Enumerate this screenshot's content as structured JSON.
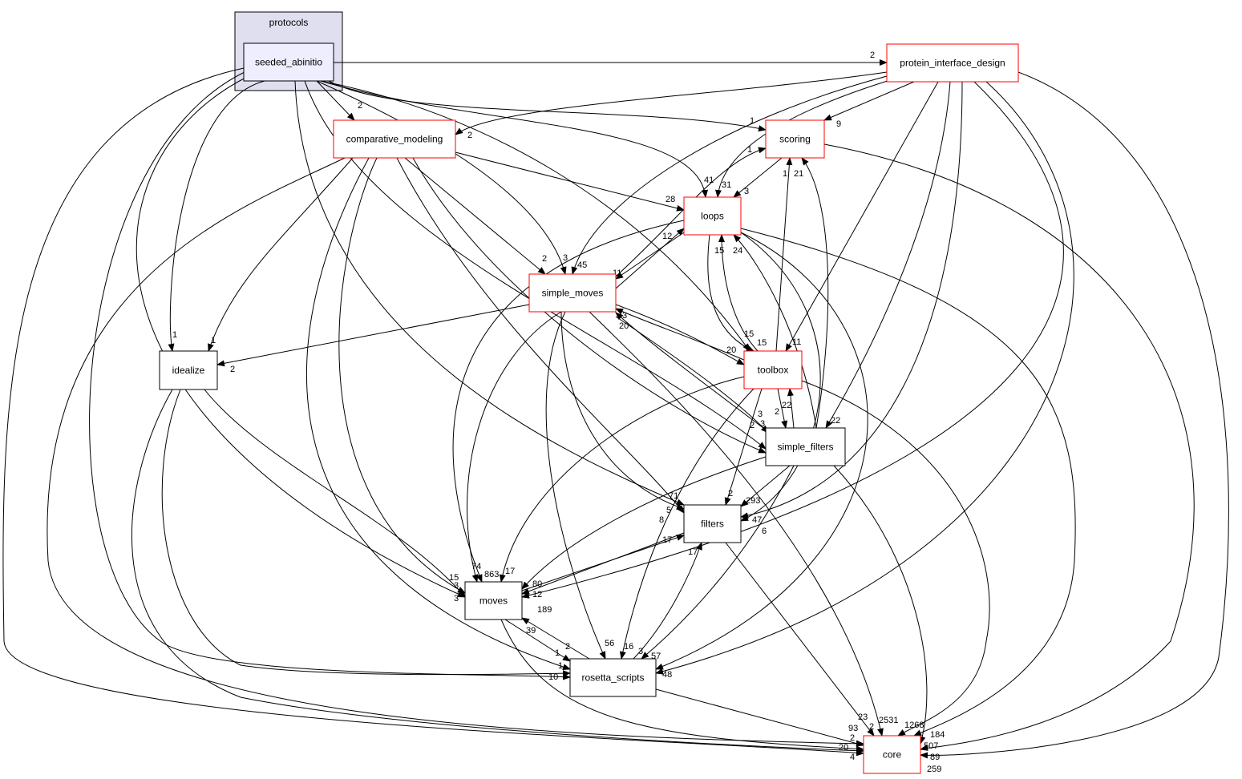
{
  "graph": {
    "cluster_label": "protocols",
    "colors": {
      "highlight_fill": "#eeeeff",
      "cluster_fill": "#dfdfef",
      "red_border": "#ff0000"
    },
    "nodes": [
      {
        "id": "seeded_abinitio",
        "label": "seeded_abinitio",
        "style": "current"
      },
      {
        "id": "protein_interface_design",
        "label": "protein_interface_design",
        "style": "red"
      },
      {
        "id": "comparative_modeling",
        "label": "comparative_modeling",
        "style": "red"
      },
      {
        "id": "scoring",
        "label": "scoring",
        "style": "red"
      },
      {
        "id": "loops",
        "label": "loops",
        "style": "red"
      },
      {
        "id": "simple_moves",
        "label": "simple_moves",
        "style": "red"
      },
      {
        "id": "idealize",
        "label": "idealize",
        "style": "plain"
      },
      {
        "id": "toolbox",
        "label": "toolbox",
        "style": "red"
      },
      {
        "id": "simple_filters",
        "label": "simple_filters",
        "style": "plain"
      },
      {
        "id": "filters",
        "label": "filters",
        "style": "plain"
      },
      {
        "id": "moves",
        "label": "moves",
        "style": "plain"
      },
      {
        "id": "rosetta_scripts",
        "label": "rosetta_scripts",
        "style": "plain"
      },
      {
        "id": "core",
        "label": "core",
        "style": "red"
      }
    ],
    "edges": [
      {
        "from": "seeded_abinitio",
        "to": "protein_interface_design",
        "label": "2"
      },
      {
        "from": "seeded_abinitio",
        "to": "comparative_modeling",
        "label": "2"
      },
      {
        "from": "seeded_abinitio",
        "to": "scoring",
        "label": "1"
      },
      {
        "from": "seeded_abinitio",
        "to": "loops",
        "label": "41"
      },
      {
        "from": "seeded_abinitio",
        "to": "simple_moves",
        "label": "3"
      },
      {
        "from": "seeded_abinitio",
        "to": "toolbox",
        "label": "15"
      },
      {
        "from": "seeded_abinitio",
        "to": "idealize",
        "label": "1"
      },
      {
        "from": "seeded_abinitio",
        "to": "simple_filters",
        "label": "3"
      },
      {
        "from": "seeded_abinitio",
        "to": "filters",
        "label": "5"
      },
      {
        "from": "seeded_abinitio",
        "to": "moves",
        "label": "3"
      },
      {
        "from": "seeded_abinitio",
        "to": "rosetta_scripts",
        "label": "10"
      },
      {
        "from": "seeded_abinitio",
        "to": "core",
        "label": "20"
      },
      {
        "from": "protein_interface_design",
        "to": "comparative_modeling",
        "label": "2"
      },
      {
        "from": "protein_interface_design",
        "to": "scoring",
        "label": "9"
      },
      {
        "from": "protein_interface_design",
        "to": "simple_moves",
        "label": "45"
      },
      {
        "from": "protein_interface_design",
        "to": "loops",
        "label": "31"
      },
      {
        "from": "protein_interface_design",
        "to": "toolbox",
        "label": "11"
      },
      {
        "from": "protein_interface_design",
        "to": "simple_filters",
        "label": "22"
      },
      {
        "from": "protein_interface_design",
        "to": "filters",
        "label": "47"
      },
      {
        "from": "protein_interface_design",
        "to": "moves",
        "label": "189"
      },
      {
        "from": "protein_interface_design",
        "to": "rosetta_scripts",
        "label": "48"
      },
      {
        "from": "protein_interface_design",
        "to": "core",
        "label": "259"
      },
      {
        "from": "comparative_modeling",
        "to": "loops",
        "label": "28"
      },
      {
        "from": "comparative_modeling",
        "to": "simple_moves",
        "label": "2"
      },
      {
        "from": "comparative_modeling",
        "to": "idealize",
        "label": "1"
      },
      {
        "from": "comparative_modeling",
        "to": "simple_filters",
        "label": "2"
      },
      {
        "from": "comparative_modeling",
        "to": "filters",
        "label": "71"
      },
      {
        "from": "comparative_modeling",
        "to": "moves",
        "label": "15"
      },
      {
        "from": "comparative_modeling",
        "to": "rosetta_scripts",
        "label": "1"
      },
      {
        "from": "comparative_modeling",
        "to": "core",
        "label": "93"
      },
      {
        "from": "scoring",
        "to": "loops",
        "label": "3"
      },
      {
        "from": "simple_moves",
        "to": "scoring",
        "label": "1"
      },
      {
        "from": "simple_moves",
        "to": "loops",
        "label": "12"
      },
      {
        "from": "loops",
        "to": "simple_moves",
        "label": "11"
      },
      {
        "from": "loops",
        "to": "toolbox",
        "label": "15"
      },
      {
        "from": "toolbox",
        "to": "loops",
        "label": "15"
      },
      {
        "from": "simple_filters",
        "to": "loops",
        "label": "24"
      },
      {
        "from": "toolbox",
        "to": "scoring",
        "label": "1"
      },
      {
        "from": "simple_filters",
        "to": "scoring",
        "label": "21"
      },
      {
        "from": "simple_moves",
        "to": "toolbox",
        "label": "20"
      },
      {
        "from": "toolbox",
        "to": "simple_moves",
        "label": "3"
      },
      {
        "from": "simple_filters",
        "to": "simple_moves",
        "label": "20"
      },
      {
        "from": "simple_moves",
        "to": "simple_filters",
        "label": "3"
      },
      {
        "from": "toolbox",
        "to": "simple_filters",
        "label": "2"
      },
      {
        "from": "simple_filters",
        "to": "toolbox",
        "label": "22"
      },
      {
        "from": "simple_moves",
        "to": "idealize",
        "label": "2"
      },
      {
        "from": "simple_moves",
        "to": "moves",
        "label": "74"
      },
      {
        "from": "simple_moves",
        "to": "rosetta_scripts",
        "label": "56"
      },
      {
        "from": "simple_moves",
        "to": "filters",
        "label": "8"
      },
      {
        "from": "simple_moves",
        "to": "core",
        "label": "2"
      },
      {
        "from": "loops",
        "to": "moves",
        "label": "863"
      },
      {
        "from": "loops",
        "to": "rosetta_scripts",
        "label": "57"
      },
      {
        "from": "loops",
        "to": "filters",
        "label": "6"
      },
      {
        "from": "loops",
        "to": "core",
        "label": "1268"
      },
      {
        "from": "scoring",
        "to": "core",
        "label": "184"
      },
      {
        "from": "toolbox",
        "to": "moves",
        "label": "17"
      },
      {
        "from": "toolbox",
        "to": "rosetta_scripts",
        "label": "16"
      },
      {
        "from": "toolbox",
        "to": "filters",
        "label": "2"
      },
      {
        "from": "toolbox",
        "to": "core",
        "label": "2531"
      },
      {
        "from": "simple_filters",
        "to": "filters",
        "label": "293"
      },
      {
        "from": "simple_filters",
        "to": "moves",
        "label": "80"
      },
      {
        "from": "simple_filters",
        "to": "rosetta_scripts",
        "label": "3"
      },
      {
        "from": "simple_filters",
        "to": "core",
        "label": "507"
      },
      {
        "from": "filters",
        "to": "moves",
        "label": "12"
      },
      {
        "from": "moves",
        "to": "filters",
        "label": "17"
      },
      {
        "from": "rosetta_scripts",
        "to": "filters",
        "label": "17"
      },
      {
        "from": "filters",
        "to": "core",
        "label": "23"
      },
      {
        "from": "moves",
        "to": "rosetta_scripts",
        "label": "2"
      },
      {
        "from": "rosetta_scripts",
        "to": "moves",
        "label": "39"
      },
      {
        "from": "moves",
        "to": "core",
        "label": "4"
      },
      {
        "from": "idealize",
        "to": "moves",
        "label": "3"
      },
      {
        "from": "idealize",
        "to": "rosetta_scripts",
        "label": "1"
      },
      {
        "from": "idealize",
        "to": "core",
        "label": "2"
      },
      {
        "from": "rosetta_scripts",
        "to": "core",
        "label": "89"
      }
    ]
  }
}
